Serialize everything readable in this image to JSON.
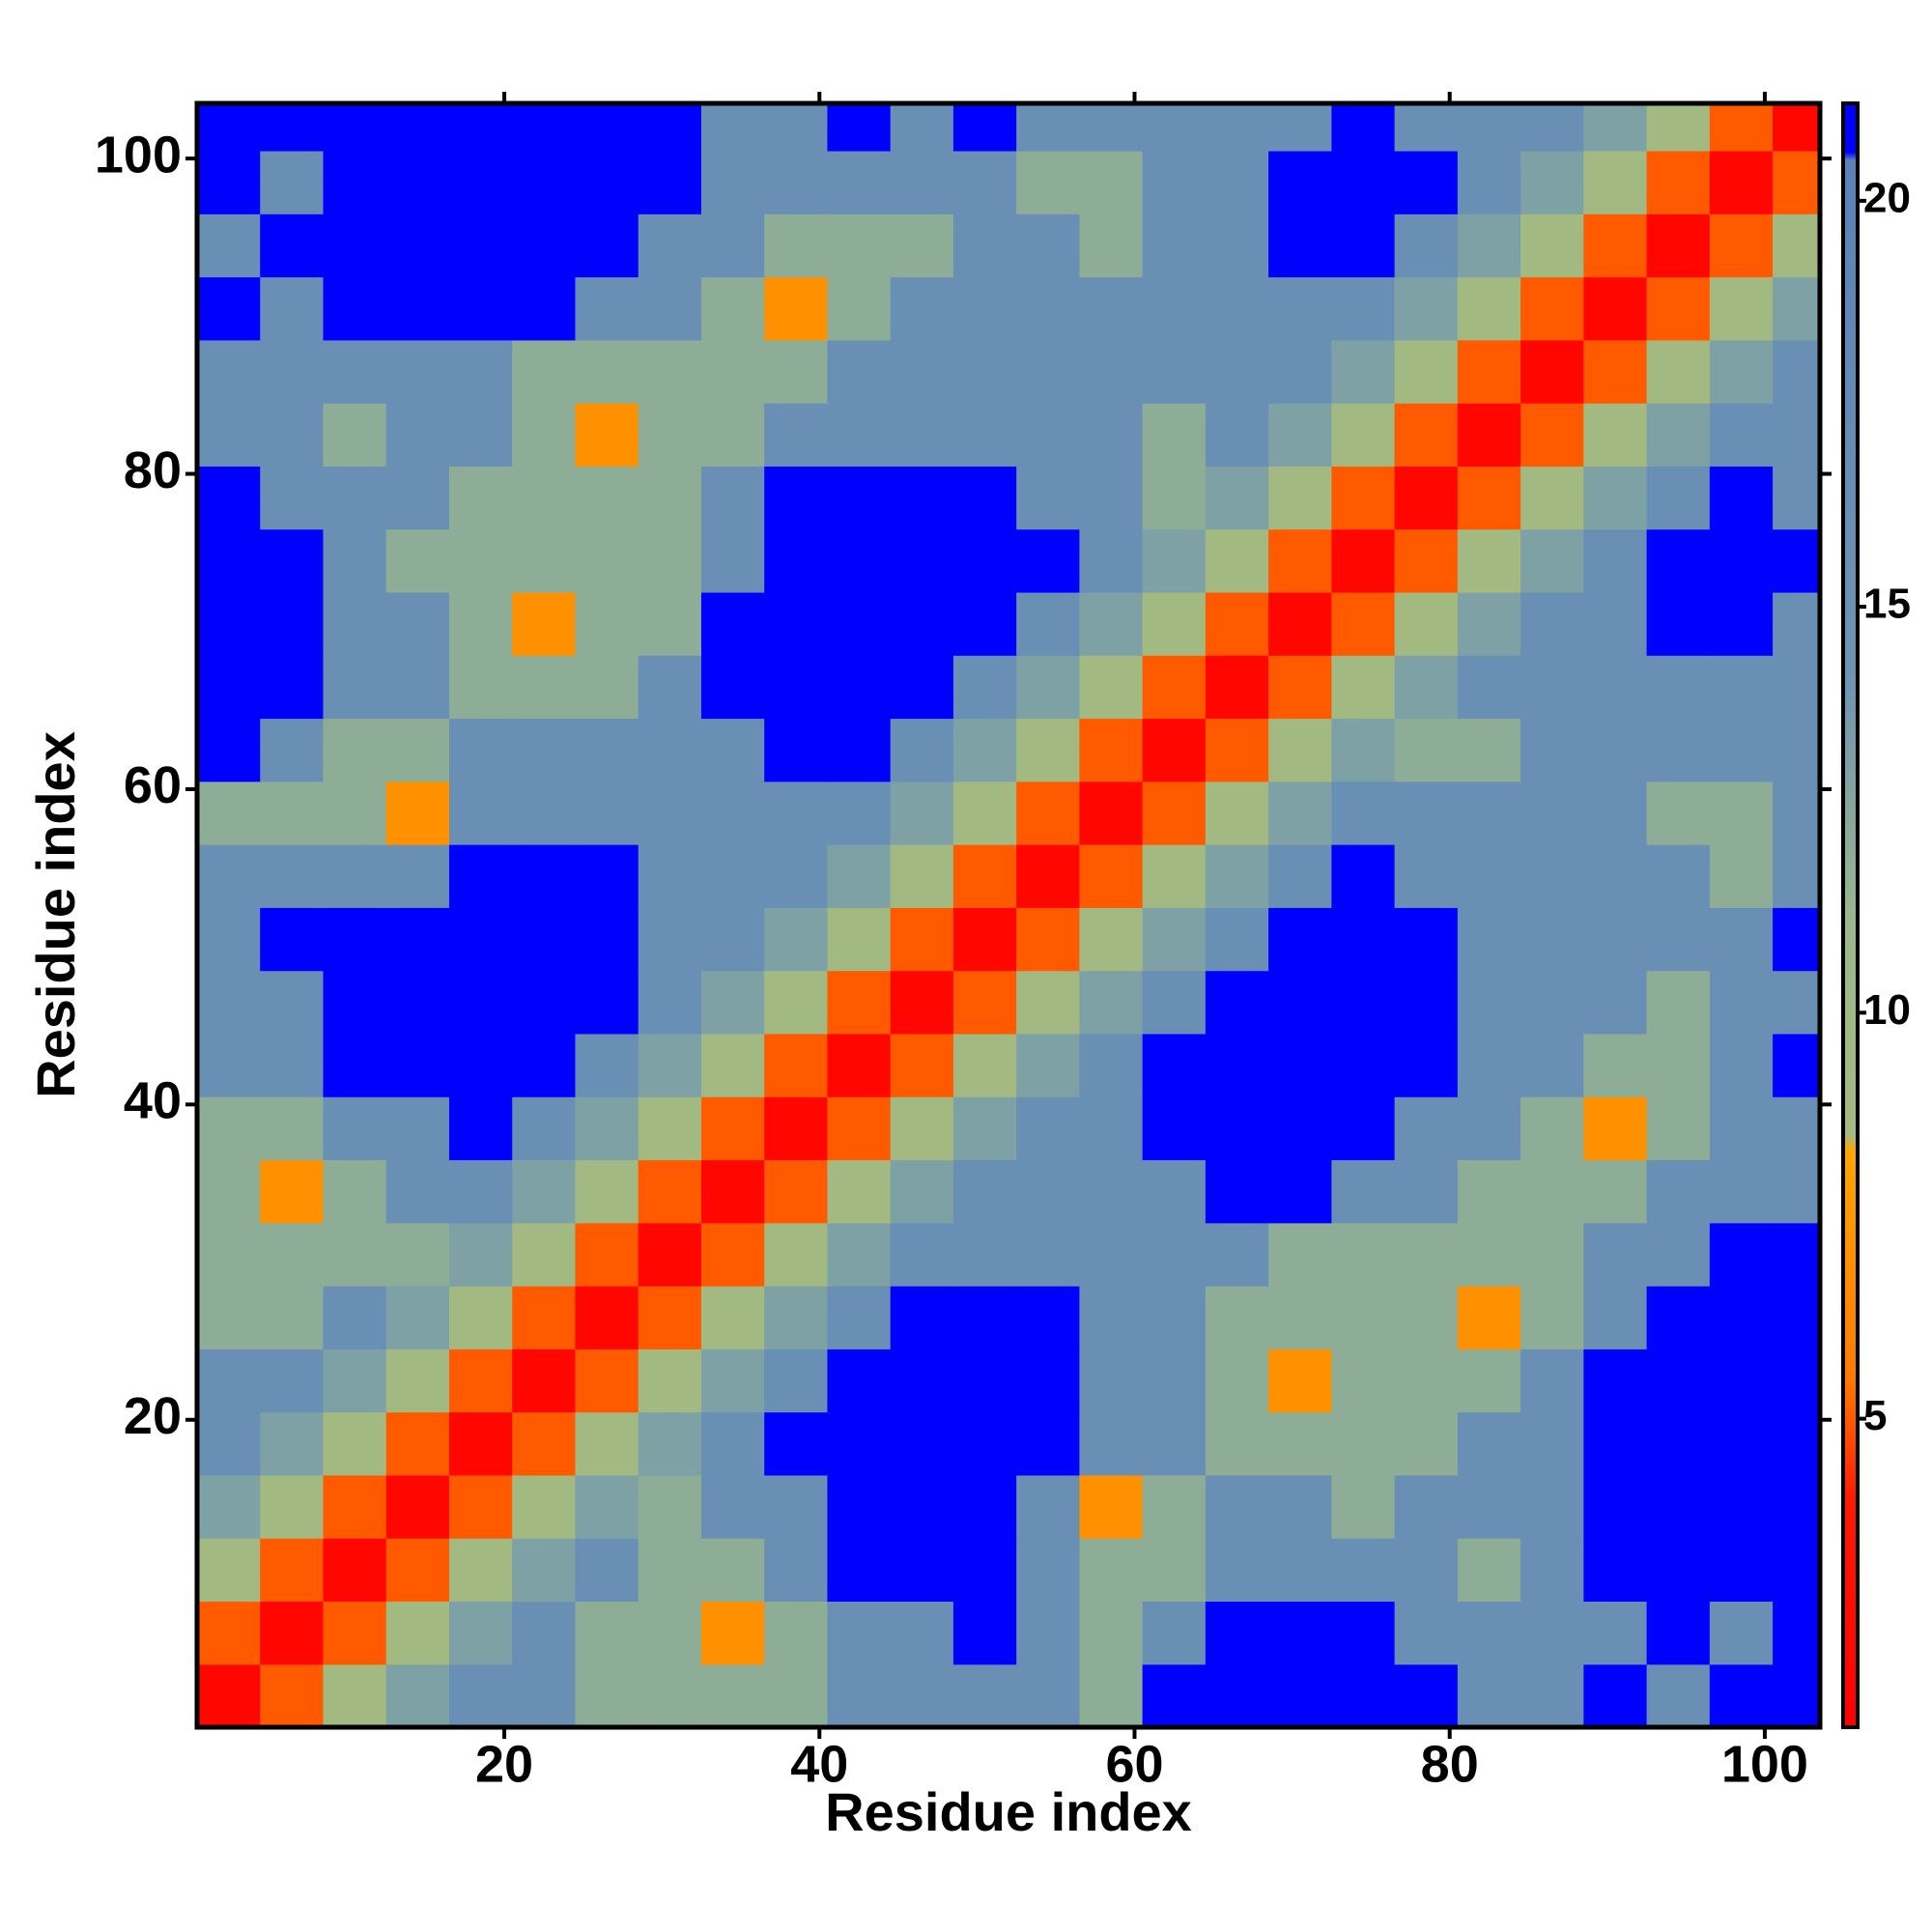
{
  "chart_data": {
    "type": "heatmap",
    "xlabel": "Residue index",
    "ylabel": "Residue index",
    "x": [
      2.5,
      6.5,
      10.5,
      14.5,
      18.5,
      22.5,
      26.5,
      30.5,
      34.5,
      38.5,
      42.5,
      46.5,
      50.5,
      54.5,
      58.5,
      62.5,
      66.5,
      70.5,
      74.5,
      78.5,
      82.5,
      86.5,
      90.5,
      94.5,
      98.5,
      102.5
    ],
    "y": [
      2.5,
      6.5,
      10.5,
      14.5,
      18.5,
      22.5,
      26.5,
      30.5,
      34.5,
      38.5,
      42.5,
      46.5,
      50.5,
      54.5,
      58.5,
      62.5,
      66.5,
      70.5,
      74.5,
      78.5,
      82.5,
      86.5,
      90.5,
      94.5,
      98.5,
      102.5
    ],
    "values": [
      [
        2,
        5,
        9,
        13,
        16,
        16,
        12,
        12,
        12,
        12,
        16,
        16,
        16,
        16,
        12,
        22,
        22,
        22,
        22,
        22,
        16,
        16,
        22,
        16,
        22,
        22
      ],
      [
        5,
        2,
        5,
        9,
        13,
        16,
        12,
        12,
        7,
        12,
        16,
        16,
        22,
        16,
        12,
        16,
        22,
        22,
        22,
        16,
        16,
        16,
        16,
        22,
        16,
        22
      ],
      [
        9,
        5,
        2,
        5,
        9,
        13,
        16,
        12,
        12,
        16,
        22,
        22,
        22,
        16,
        12,
        12,
        16,
        16,
        16,
        16,
        12,
        16,
        22,
        22,
        22,
        22
      ],
      [
        13,
        9,
        5,
        2,
        5,
        9,
        13,
        12,
        16,
        16,
        22,
        22,
        22,
        16,
        7,
        12,
        16,
        16,
        12,
        16,
        16,
        16,
        22,
        22,
        22,
        22
      ],
      [
        16,
        13,
        9,
        5,
        2,
        5,
        9,
        13,
        16,
        22,
        22,
        22,
        22,
        22,
        16,
        16,
        12,
        12,
        12,
        12,
        16,
        16,
        22,
        22,
        22,
        22
      ],
      [
        16,
        16,
        13,
        9,
        5,
        2,
        5,
        9,
        13,
        16,
        22,
        22,
        22,
        22,
        16,
        16,
        12,
        7,
        12,
        12,
        12,
        16,
        22,
        22,
        22,
        22
      ],
      [
        12,
        12,
        16,
        13,
        9,
        5,
        2,
        5,
        9,
        13,
        16,
        22,
        22,
        22,
        16,
        16,
        12,
        12,
        12,
        12,
        7,
        12,
        16,
        22,
        22,
        22
      ],
      [
        12,
        12,
        12,
        12,
        13,
        9,
        5,
        2,
        5,
        9,
        13,
        16,
        16,
        16,
        16,
        16,
        16,
        12,
        12,
        12,
        12,
        12,
        16,
        16,
        22,
        22
      ],
      [
        12,
        7,
        12,
        16,
        16,
        13,
        9,
        5,
        2,
        5,
        9,
        13,
        16,
        16,
        16,
        16,
        22,
        22,
        16,
        16,
        12,
        12,
        12,
        16,
        16,
        16
      ],
      [
        12,
        12,
        16,
        16,
        22,
        16,
        13,
        9,
        5,
        2,
        5,
        9,
        13,
        16,
        16,
        22,
        22,
        22,
        22,
        16,
        16,
        12,
        7,
        12,
        16,
        16
      ],
      [
        16,
        16,
        22,
        22,
        22,
        22,
        16,
        13,
        9,
        5,
        2,
        5,
        9,
        13,
        16,
        22,
        22,
        22,
        22,
        22,
        16,
        16,
        12,
        12,
        16,
        22
      ],
      [
        16,
        16,
        22,
        22,
        22,
        22,
        22,
        16,
        13,
        9,
        5,
        2,
        5,
        9,
        13,
        16,
        22,
        22,
        22,
        22,
        16,
        16,
        16,
        12,
        16,
        16
      ],
      [
        16,
        22,
        22,
        22,
        22,
        22,
        22,
        16,
        16,
        13,
        9,
        5,
        2,
        5,
        9,
        13,
        16,
        22,
        22,
        22,
        16,
        16,
        16,
        16,
        16,
        22
      ],
      [
        16,
        16,
        16,
        16,
        22,
        22,
        22,
        16,
        16,
        16,
        13,
        9,
        5,
        2,
        5,
        9,
        13,
        16,
        22,
        16,
        16,
        16,
        16,
        16,
        12,
        16
      ],
      [
        12,
        12,
        12,
        7,
        16,
        16,
        16,
        16,
        16,
        16,
        16,
        13,
        9,
        5,
        2,
        5,
        9,
        13,
        16,
        16,
        16,
        16,
        16,
        12,
        12,
        16
      ],
      [
        22,
        16,
        12,
        12,
        16,
        16,
        16,
        16,
        16,
        22,
        22,
        16,
        13,
        9,
        5,
        2,
        5,
        9,
        13,
        12,
        12,
        16,
        16,
        16,
        16,
        16
      ],
      [
        22,
        22,
        16,
        16,
        12,
        12,
        12,
        16,
        22,
        22,
        22,
        22,
        16,
        13,
        9,
        5,
        2,
        5,
        9,
        13,
        16,
        16,
        16,
        16,
        16,
        16
      ],
      [
        22,
        22,
        16,
        16,
        12,
        7,
        12,
        12,
        22,
        22,
        22,
        22,
        22,
        16,
        13,
        9,
        5,
        2,
        5,
        9,
        13,
        16,
        16,
        22,
        22,
        16
      ],
      [
        22,
        22,
        16,
        12,
        12,
        12,
        12,
        12,
        16,
        22,
        22,
        22,
        22,
        22,
        16,
        13,
        9,
        5,
        2,
        5,
        9,
        13,
        16,
        22,
        22,
        22
      ],
      [
        22,
        16,
        16,
        16,
        12,
        12,
        12,
        12,
        16,
        22,
        22,
        22,
        22,
        16,
        16,
        12,
        13,
        9,
        5,
        2,
        5,
        9,
        13,
        16,
        22,
        16
      ],
      [
        16,
        16,
        12,
        16,
        16,
        12,
        7,
        12,
        12,
        16,
        16,
        16,
        16,
        16,
        16,
        12,
        16,
        13,
        9,
        5,
        2,
        5,
        9,
        13,
        16,
        16
      ],
      [
        16,
        16,
        16,
        16,
        16,
        12,
        12,
        12,
        12,
        12,
        16,
        16,
        16,
        16,
        16,
        16,
        16,
        16,
        13,
        9,
        5,
        2,
        5,
        9,
        13,
        16
      ],
      [
        22,
        16,
        22,
        22,
        22,
        22,
        16,
        16,
        12,
        7,
        12,
        16,
        16,
        16,
        16,
        16,
        16,
        16,
        16,
        13,
        9,
        5,
        2,
        5,
        9,
        13
      ],
      [
        16,
        22,
        22,
        22,
        22,
        22,
        22,
        16,
        16,
        12,
        12,
        12,
        16,
        16,
        12,
        16,
        16,
        22,
        22,
        16,
        13,
        9,
        5,
        2,
        5,
        9
      ],
      [
        22,
        16,
        22,
        22,
        22,
        22,
        22,
        22,
        16,
        16,
        16,
        16,
        16,
        12,
        12,
        16,
        16,
        22,
        22,
        22,
        16,
        13,
        9,
        5,
        2,
        5
      ],
      [
        22,
        22,
        22,
        22,
        22,
        22,
        22,
        22,
        16,
        16,
        22,
        16,
        22,
        16,
        16,
        16,
        16,
        16,
        22,
        16,
        16,
        16,
        13,
        9,
        5,
        2
      ]
    ],
    "xlim": [
      0.5,
      103.5
    ],
    "ylim": [
      0.5,
      103.5
    ],
    "xticks": [
      20,
      40,
      60,
      80,
      100
    ],
    "yticks": [
      20,
      40,
      60,
      80,
      100
    ],
    "clim": [
      1.2,
      21.2
    ],
    "cticks": [
      5,
      10,
      15,
      20
    ],
    "colorscale": [
      [
        1.2,
        "#ff0000"
      ],
      [
        4,
        "#ff1a00"
      ],
      [
        5.5,
        "#ff7a00"
      ],
      [
        8.3,
        "#ffa500"
      ],
      [
        8.5,
        "#a3ba80"
      ],
      [
        11,
        "#9db98a"
      ],
      [
        14,
        "#6f95b2"
      ],
      [
        20.5,
        "#5a82b8"
      ],
      [
        20.6,
        "#0000ff"
      ],
      [
        21.2,
        "#0000ff"
      ]
    ]
  }
}
